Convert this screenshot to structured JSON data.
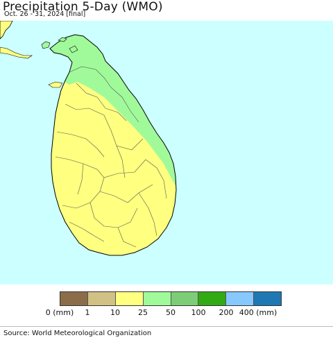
{
  "title": "Precipitation 5-Day (WMO)",
  "subtitle": "Oct. 26 - 31, 2024 [final]",
  "legend": {
    "swatches": [
      {
        "color": "#8c6d4a"
      },
      {
        "color": "#d2c185"
      },
      {
        "color": "#ffff80"
      },
      {
        "color": "#a0fa9a"
      },
      {
        "color": "#7dcd78"
      },
      {
        "color": "#32aa14"
      },
      {
        "color": "#87c8ff"
      },
      {
        "color": "#1e78b4"
      }
    ],
    "labels": [
      "0 (mm)",
      "1",
      "10",
      "25",
      "50",
      "100",
      "200",
      "400 (mm)"
    ]
  },
  "map": {
    "ocean_color": "#ccffff",
    "land_zones": [
      {
        "range": "10-25 mm",
        "color": "#ffff80"
      },
      {
        "range": "25-50 mm",
        "color": "#a0fa9a"
      }
    ]
  },
  "source": "Source: World Meteorological Organization"
}
